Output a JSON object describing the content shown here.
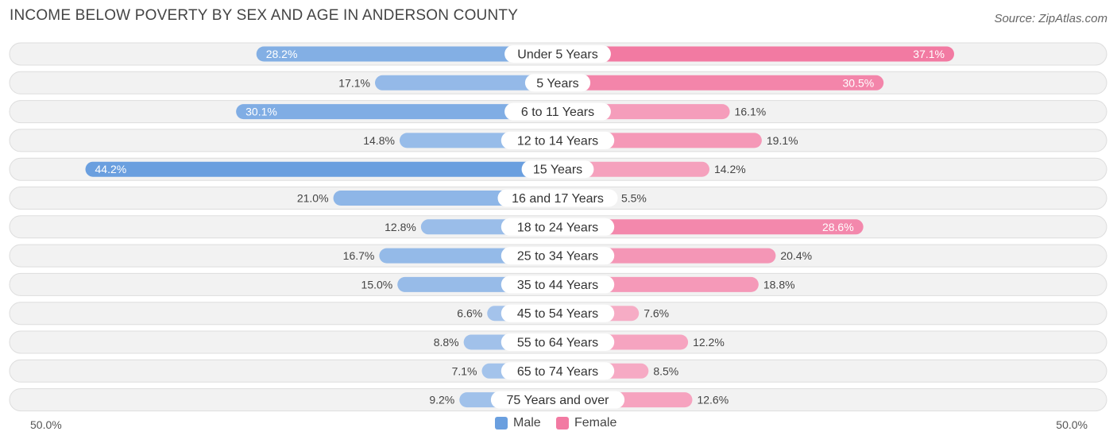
{
  "title": "INCOME BELOW POVERTY BY SEX AND AGE IN ANDERSON COUNTY",
  "source": "Source: ZipAtlas.com",
  "axis": {
    "left_label": "50.0%",
    "right_label": "50.0%"
  },
  "legend": {
    "male_label": "Male",
    "female_label": "Female"
  },
  "colors": {
    "male_dark": "#6a9fdf",
    "male_light": "#a8c6ec",
    "female_dark": "#f27aa2",
    "female_light": "#f7b3ca",
    "row_bg": "#f2f2f2",
    "row_border": "#dddddd"
  },
  "chart_data": {
    "type": "bar",
    "orientation": "horizontal-diverging",
    "title": "INCOME BELOW POVERTY BY SEX AND AGE IN ANDERSON COUNTY",
    "xlim": [
      0,
      50
    ],
    "categories": [
      "Under 5 Years",
      "5 Years",
      "6 to 11 Years",
      "12 to 14 Years",
      "15 Years",
      "16 and 17 Years",
      "18 to 24 Years",
      "25 to 34 Years",
      "35 to 44 Years",
      "45 to 54 Years",
      "55 to 64 Years",
      "65 to 74 Years",
      "75 Years and over"
    ],
    "series": [
      {
        "name": "Male",
        "values": [
          28.2,
          17.1,
          30.1,
          14.8,
          44.2,
          21.0,
          12.8,
          16.7,
          15.0,
          6.6,
          8.8,
          7.1,
          9.2
        ],
        "labels": [
          "28.2%",
          "17.1%",
          "30.1%",
          "14.8%",
          "44.2%",
          "21.0%",
          "12.8%",
          "16.7%",
          "15.0%",
          "6.6%",
          "8.8%",
          "7.1%",
          "9.2%"
        ]
      },
      {
        "name": "Female",
        "values": [
          37.1,
          30.5,
          16.1,
          19.1,
          14.2,
          5.5,
          28.6,
          20.4,
          18.8,
          7.6,
          12.2,
          8.5,
          12.6
        ],
        "labels": [
          "37.1%",
          "30.5%",
          "16.1%",
          "19.1%",
          "14.2%",
          "5.5%",
          "28.6%",
          "20.4%",
          "18.8%",
          "7.6%",
          "12.2%",
          "8.5%",
          "12.6%"
        ]
      }
    ]
  }
}
